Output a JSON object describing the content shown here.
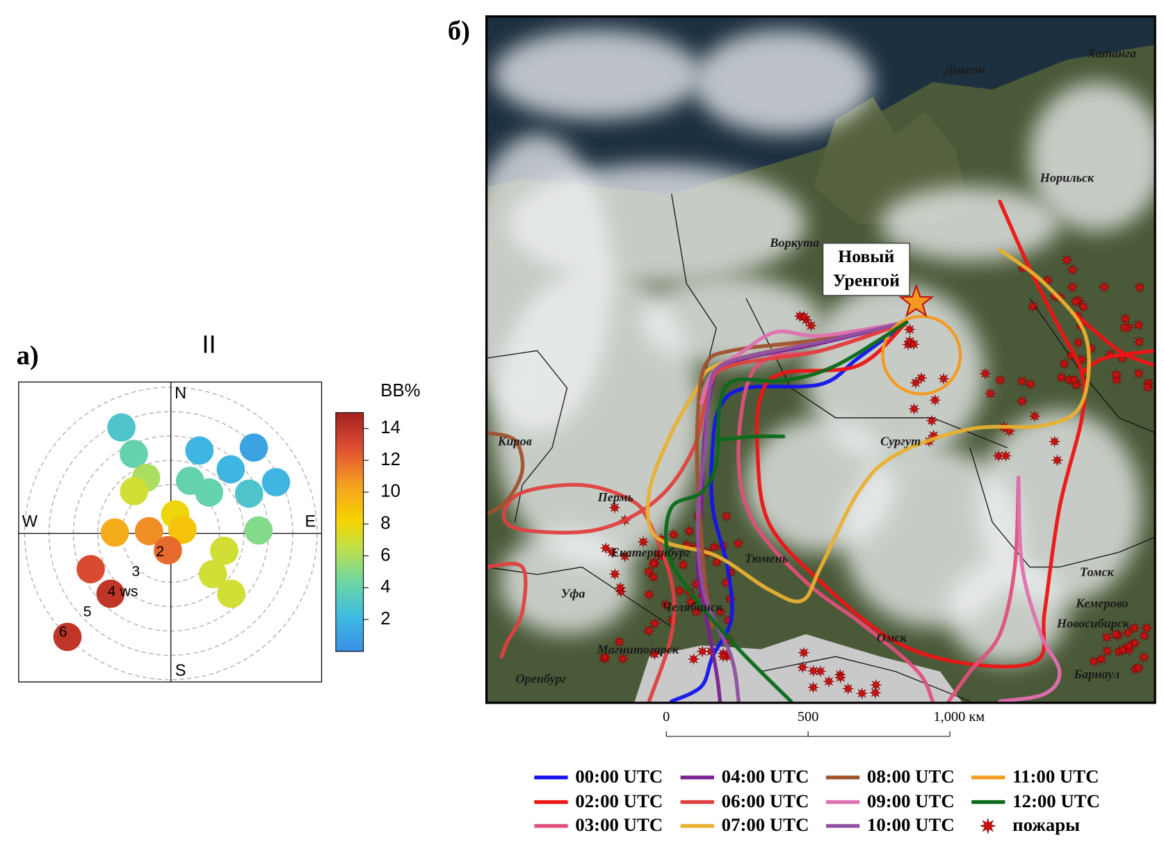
{
  "chart_data": [
    {
      "type": "polar",
      "panel_label": "а)",
      "title": "II",
      "direction_labels": {
        "north": "N",
        "east": "E",
        "south": "S",
        "west": "W"
      },
      "rlim": [
        0,
        6.2
      ],
      "rticks": [
        2,
        3,
        {
          "value": 4,
          "label": "4 ws"
        },
        5,
        6
      ],
      "theta": [
        335,
        335,
        336,
        319,
        19,
        44,
        43,
        64,
        20,
        43,
        63,
        88,
        13,
        72,
        276,
        271,
        190,
        108,
        134,
        135,
        246,
        225,
        225
      ],
      "r": [
        4.8,
        3.6,
        2.5,
        2.3,
        3.6,
        4.9,
        3.6,
        4.8,
        2.3,
        2.3,
        3.6,
        3.6,
        0.8,
        0.5,
        0.9,
        2.3,
        0.7,
        2.3,
        2.4,
        3.5,
        3.6,
        3.5,
        6.0
      ],
      "values": [
        3,
        4,
        6,
        7,
        2,
        1,
        2,
        2,
        4,
        4,
        3,
        5,
        8,
        9,
        11,
        10,
        12,
        7,
        7,
        7,
        13,
        14,
        14
      ],
      "colorbar": {
        "title": "BB%",
        "lim": [
          0,
          15
        ],
        "ticks": [
          2,
          4,
          6,
          8,
          10,
          12,
          14
        ]
      }
    },
    {
      "type": "map",
      "panel_label": "б)",
      "place_labels": [
        "Хатанга",
        "Диксон",
        "Норильск",
        "Воркута",
        "Сургут",
        "Киров",
        "Пермь",
        "Екатеринбург",
        "Тюмень",
        "Уфа",
        "Челябинск",
        "Омск",
        "Магнитогорск",
        "Оренбург",
        "Томск",
        "Кемерово",
        "Новосибирск",
        "Барнаул"
      ],
      "highlight_label": [
        "Новый",
        "Уренгой"
      ],
      "scale_ticks": [
        0,
        500,
        {
          "value": 1000,
          "label": "1,000 км"
        }
      ],
      "series": [
        {
          "name": "00:00 UTC",
          "color": "#1414ee"
        },
        {
          "name": "02:00 UTC",
          "color": "#ee1414"
        },
        {
          "name": "03:00 UTC",
          "color": "#e0507a"
        },
        {
          "name": "04:00 UTC",
          "color": "#7b2090"
        },
        {
          "name": "06:00 UTC",
          "color": "#e04040"
        },
        {
          "name": "07:00 UTC",
          "color": "#e8b030"
        },
        {
          "name": "08:00 UTC",
          "color": "#a0522d"
        },
        {
          "name": "09:00 UTC",
          "color": "#e070b0"
        },
        {
          "name": "10:00 UTC",
          "color": "#9050a0"
        },
        {
          "name": "11:00 UTC",
          "color": "#f59a20"
        },
        {
          "name": "12:00 UTC",
          "color": "#0a6a1a"
        }
      ],
      "fires": {
        "name": "пожары",
        "color": "#cc1111"
      }
    }
  ]
}
